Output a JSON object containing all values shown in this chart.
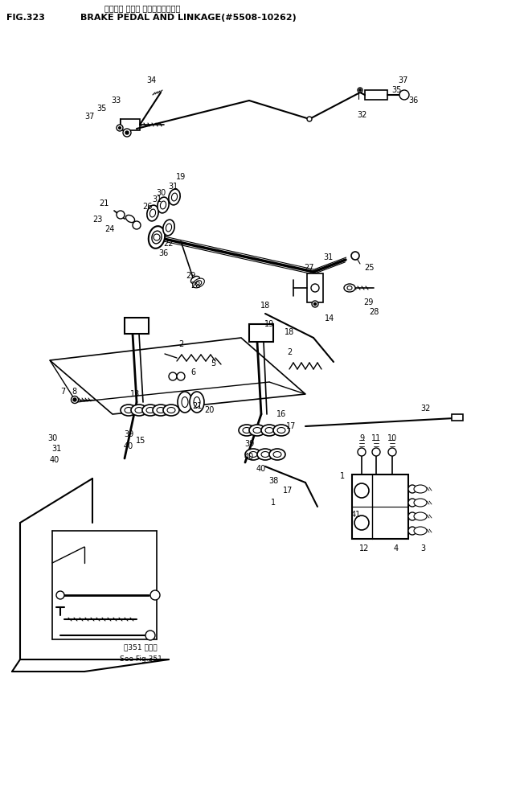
{
  "title_jp": "ブレーキ ペダル およびリンケージ",
  "title_en": "BRAKE PEDAL AND LINKAGE(#5508-10262)",
  "fig_number": "FIG.323",
  "bg": "#ffffff",
  "lc": "#000000"
}
